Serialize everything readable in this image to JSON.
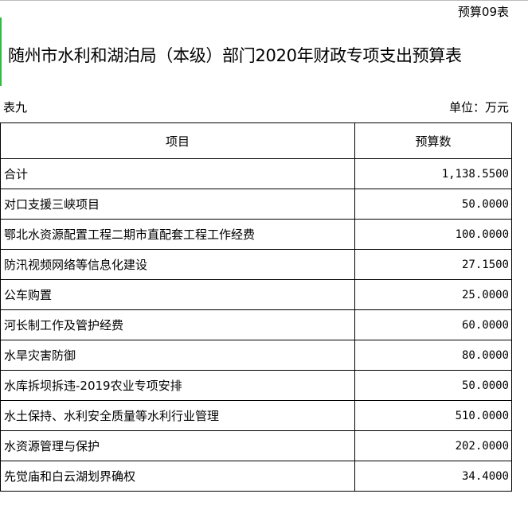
{
  "form_code": "预算09表",
  "title": "随州市水利和湖泊局（本级）部门2020年财政专项支出预算表",
  "table_label": "表九",
  "unit": "单位：万元",
  "columns": [
    "项目",
    "预算数"
  ],
  "rows": [
    {
      "item": "合计",
      "amount": "1,138.5500"
    },
    {
      "item": "对口支援三峡项目",
      "amount": "50.0000"
    },
    {
      "item": "鄂北水资源配置工程二期市直配套工程工作经费",
      "amount": "100.0000"
    },
    {
      "item": "防汛视频网络等信息化建设",
      "amount": "27.1500"
    },
    {
      "item": "公车购置",
      "amount": "25.0000"
    },
    {
      "item": "河长制工作及管护经费",
      "amount": "60.0000"
    },
    {
      "item": "水旱灾害防御",
      "amount": "80.0000"
    },
    {
      "item": "水库拆坝拆违-2019农业专项安排",
      "amount": "50.0000"
    },
    {
      "item": "水土保持、水利安全质量等水利行业管理",
      "amount": "510.0000"
    },
    {
      "item": "水资源管理与保护",
      "amount": "202.0000"
    },
    {
      "item": "先觉庙和白云湖划界确权",
      "amount": "34.4000"
    }
  ]
}
